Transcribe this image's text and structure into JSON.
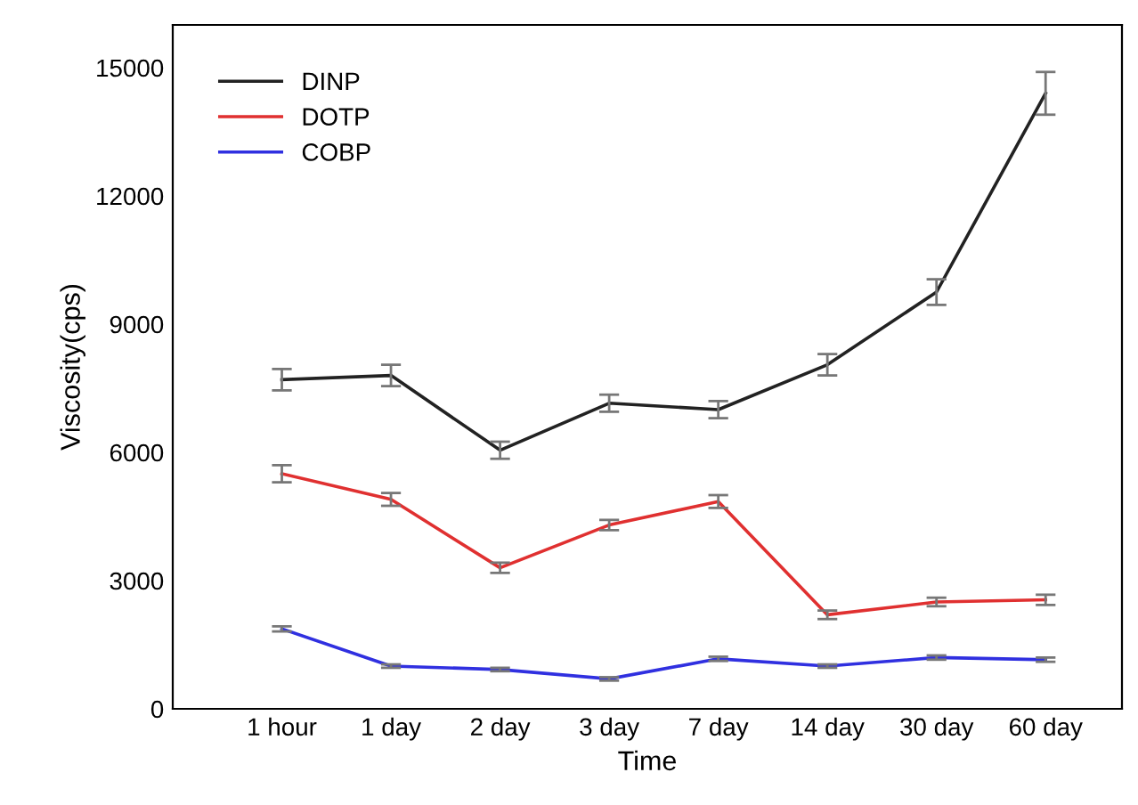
{
  "chart_data": {
    "type": "line",
    "xlabel": "Time",
    "ylabel": "Viscosity(cps)",
    "categories": [
      "1 hour",
      "1 day",
      "2 day",
      "3 day",
      "7 day",
      "14 day",
      "30 day",
      "60 day"
    ],
    "series": [
      {
        "name": "DINP",
        "color": "#222222",
        "values": [
          7700,
          7800,
          6050,
          7150,
          7000,
          8050,
          9750,
          14400
        ],
        "errors": [
          250,
          250,
          200,
          200,
          200,
          250,
          300,
          500
        ]
      },
      {
        "name": "DOTP",
        "color": "#e03030",
        "values": [
          5500,
          4900,
          3300,
          4300,
          4850,
          2200,
          2500,
          2550
        ],
        "errors": [
          200,
          150,
          120,
          120,
          150,
          100,
          100,
          120
        ]
      },
      {
        "name": "COBP",
        "color": "#3030e0",
        "values": [
          1870,
          1000,
          920,
          700,
          1170,
          1000,
          1200,
          1150
        ],
        "errors": [
          60,
          40,
          40,
          40,
          50,
          40,
          50,
          50
        ]
      }
    ],
    "ylim": [
      0,
      16000
    ],
    "yticks": [
      0,
      3000,
      6000,
      9000,
      12000,
      15000
    ],
    "grid": false,
    "legend": "top left",
    "marker": "none",
    "line_style": "solid"
  }
}
